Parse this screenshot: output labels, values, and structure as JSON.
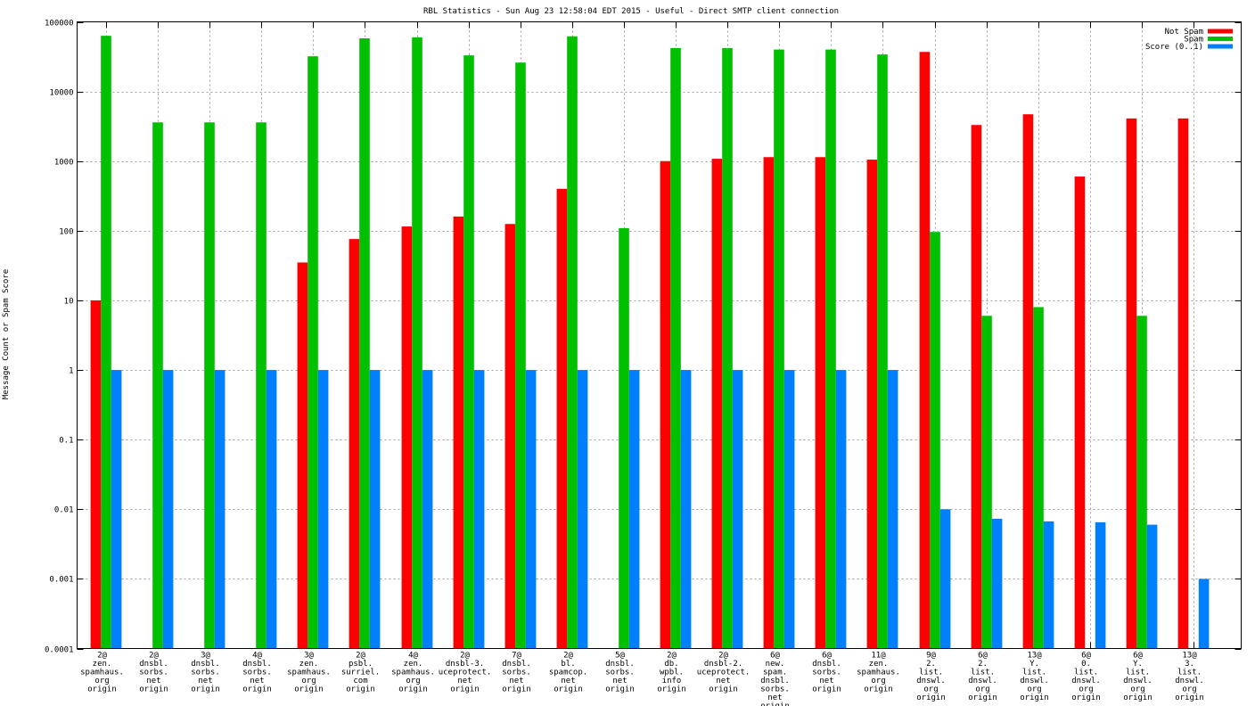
{
  "chart_data": {
    "type": "bar",
    "title": "RBL Statistics - Sun Aug 23 12:58:04 EDT 2015 - Useful - Direct SMTP client connection",
    "xlabel": "",
    "ylabel": "Message Count or Spam Score",
    "yscale": "log",
    "ylim": [
      0.0001,
      100000
    ],
    "yticks": [
      "100000",
      "10000",
      "1000",
      "100",
      "10",
      "1",
      "0.1",
      "0.01",
      "0.001",
      "0.0001"
    ],
    "grid": true,
    "legend_position": "top-right",
    "categories": [
      [
        "2@",
        "zen.",
        "spamhaus.",
        "org",
        "origin"
      ],
      [
        "2@",
        "dnsbl.",
        "sorbs.",
        "net",
        "origin"
      ],
      [
        "3@",
        "dnsbl.",
        "sorbs.",
        "net",
        "origin"
      ],
      [
        "4@",
        "dnsbl.",
        "sorbs.",
        "net",
        "origin"
      ],
      [
        "3@",
        "zen.",
        "spamhaus.",
        "org",
        "origin"
      ],
      [
        "2@",
        "psbl.",
        "surriel.",
        "com",
        "origin"
      ],
      [
        "4@",
        "zen.",
        "spamhaus.",
        "org",
        "origin"
      ],
      [
        "2@",
        "dnsbl-3.",
        "uceprotect.",
        "net",
        "origin"
      ],
      [
        "7@",
        "dnsbl.",
        "sorbs.",
        "net",
        "origin"
      ],
      [
        "2@",
        "bl.",
        "spamcop.",
        "net",
        "origin"
      ],
      [
        "5@",
        "dnsbl.",
        "sorbs.",
        "net",
        "origin"
      ],
      [
        "2@",
        "db.",
        "wpbl.",
        "info",
        "origin"
      ],
      [
        "2@",
        "dnsbl-2.",
        "uceprotect.",
        "net",
        "origin"
      ],
      [
        "6@",
        "new.",
        "spam.",
        "dnsbl.",
        "sorbs.",
        "net",
        "origin"
      ],
      [
        "6@",
        "dnsbl.",
        "sorbs.",
        "net",
        "origin"
      ],
      [
        "11@",
        "zen.",
        "spamhaus.",
        "org",
        "origin"
      ],
      [
        "9@",
        "2.",
        "list.",
        "dnswl.",
        "org",
        "origin"
      ],
      [
        "6@",
        "2.",
        "list.",
        "dnswl.",
        "org",
        "origin"
      ],
      [
        "13@",
        "Y.",
        "list.",
        "dnswl.",
        "org",
        "origin"
      ],
      [
        "6@",
        "0.",
        "list.",
        "dnswl.",
        "org",
        "origin"
      ],
      [
        "6@",
        "Y.",
        "list.",
        "dnswl.",
        "org",
        "origin"
      ],
      [
        "13@",
        "3.",
        "list.",
        "dnswl.",
        "org",
        "origin"
      ]
    ],
    "series": [
      {
        "name": "Not Spam",
        "color": "#ff0000",
        "values": [
          10,
          null,
          null,
          null,
          35,
          76,
          115,
          160,
          125,
          400,
          null,
          1000,
          1080,
          1140,
          1140,
          1050,
          37000,
          3300,
          4700,
          600,
          4100,
          4100
        ]
      },
      {
        "name": "Spam",
        "color": "#00c000",
        "values": [
          63000,
          3600,
          3600,
          3600,
          32000,
          58000,
          60000,
          33000,
          26000,
          62000,
          109,
          42000,
          42000,
          40000,
          40000,
          34000,
          96,
          6,
          8,
          null,
          6,
          null
        ]
      },
      {
        "name": "Score (0..1)",
        "color": "#0080ff",
        "values": [
          1,
          1,
          1,
          1,
          1,
          1,
          1,
          1,
          1,
          1,
          1,
          1,
          1,
          1,
          1,
          1,
          0.01,
          0.0073,
          0.0067,
          0.0065,
          0.006,
          0.001
        ]
      }
    ]
  }
}
